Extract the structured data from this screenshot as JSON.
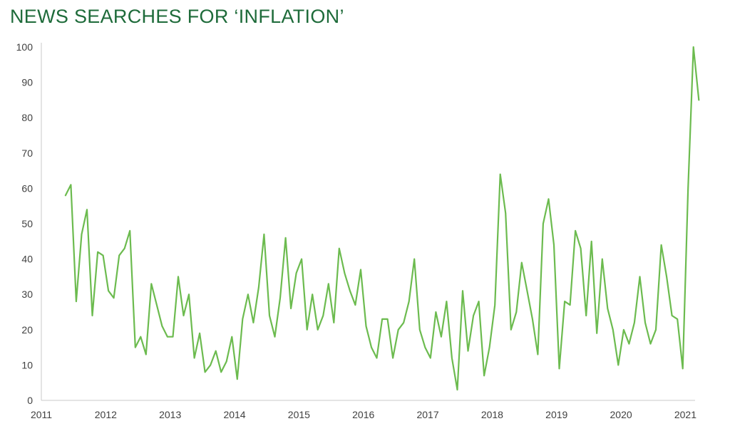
{
  "title": "NEWS SEARCHES FOR ‘INFLATION’",
  "chart_data": {
    "type": "line",
    "title": "NEWS SEARCHES FOR ‘INFLATION’",
    "xlabel": "",
    "ylabel": "",
    "xlim": [
      2011.0,
      2021.15
    ],
    "ylim": [
      0,
      100
    ],
    "x_ticks": [
      "2011",
      "2012",
      "2013",
      "2014",
      "2015",
      "2016",
      "2017",
      "2018",
      "2019",
      "2020",
      "2021"
    ],
    "y_ticks": [
      "0",
      "10",
      "20",
      "30",
      "40",
      "50",
      "60",
      "70",
      "80",
      "90",
      "100"
    ],
    "grid": false,
    "line_color": "#6cbb4f",
    "series": [
      {
        "start": "2011-05",
        "frequency": "monthly",
        "values": [
          58,
          61,
          28,
          47,
          54,
          24,
          42,
          41,
          31,
          29,
          41,
          43,
          48,
          15,
          18,
          13,
          33,
          27,
          21,
          18,
          18,
          35,
          24,
          30,
          12,
          19,
          8,
          10,
          14,
          8,
          11,
          18,
          6,
          23,
          30,
          22,
          32,
          47,
          24,
          18,
          29,
          46,
          26,
          36,
          40,
          20,
          30,
          20,
          24,
          33,
          22,
          43,
          36,
          31,
          27,
          37,
          21,
          15,
          12,
          23,
          23,
          12,
          20,
          22,
          28,
          40,
          20,
          15,
          12,
          25,
          18,
          28,
          12,
          3,
          31,
          14,
          24,
          28,
          7,
          15,
          27,
          64,
          53,
          20,
          25,
          39,
          31,
          23,
          13,
          50,
          57,
          44,
          9,
          28,
          27,
          48,
          43,
          24,
          45,
          19,
          40,
          26,
          20,
          10,
          20,
          16,
          22,
          35,
          22,
          16,
          20,
          44,
          35,
          24,
          23,
          9,
          60,
          100,
          85
        ]
      }
    ]
  }
}
